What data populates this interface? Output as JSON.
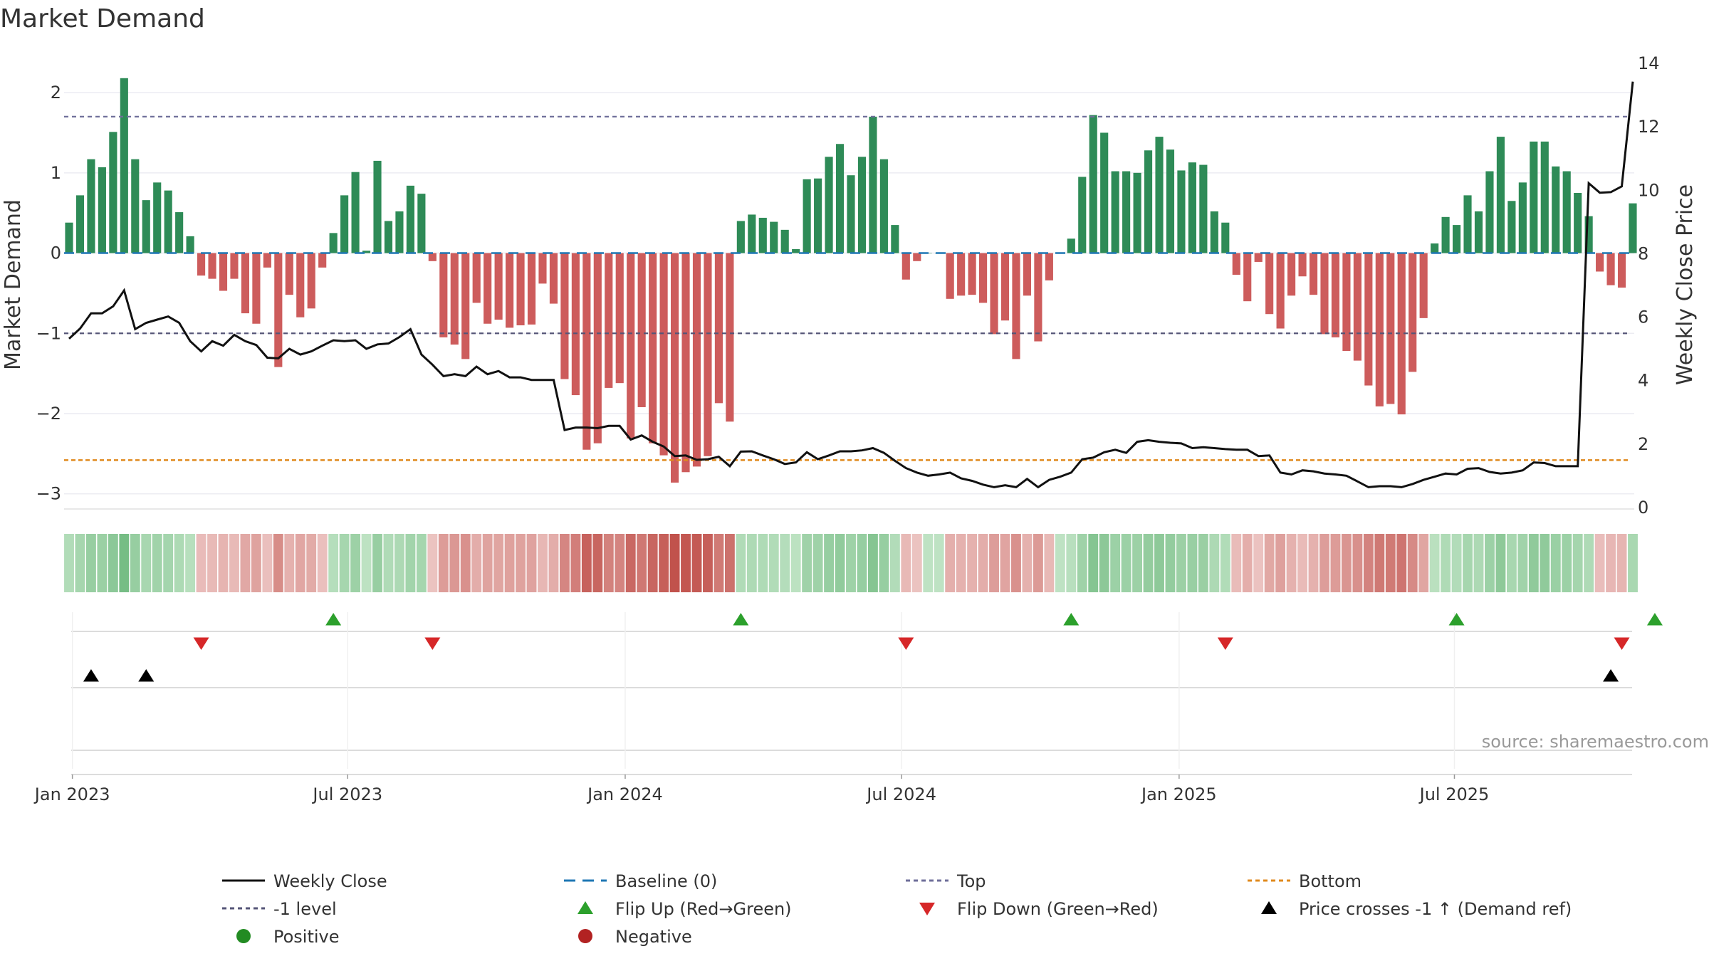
{
  "title": "Market Demand",
  "source_note": "source: sharemaestro.com",
  "colors": {
    "positive": "#2e8b57",
    "negative": "#cd5c5c",
    "close": "#111111",
    "baseline": "#1f77b4",
    "top": "#6f6f9a",
    "level": "#555577",
    "bottom": "#e08a1e",
    "flip_up": "#2ca02c",
    "flip_down": "#d62728",
    "cross": "#000000",
    "pos_dot": "#228b22",
    "neg_dot": "#b22222"
  },
  "chart_data": {
    "type": "bar",
    "title": "Market Demand",
    "ylabel": "Market Demand",
    "y2label": "Weekly Close Price",
    "ylim": [
      -3.1,
      2.4
    ],
    "y2lim": [
      0,
      14
    ],
    "yticks": [
      "2",
      "1",
      "0",
      "−1",
      "−2",
      "−3"
    ],
    "y2ticks": [
      "0",
      "2",
      "4",
      "6",
      "8",
      "10",
      "12",
      "14"
    ],
    "x_ticks": [
      "Jan 2023",
      "Jul 2023",
      "Jan 2024",
      "Jul 2024",
      "Jan 2025",
      "Jul 2025"
    ],
    "reference_lines": {
      "baseline": 0,
      "top": 1.7,
      "minus_one": -1.0,
      "bottom": -2.58
    },
    "demand": [
      0.38,
      0.72,
      1.17,
      1.07,
      1.51,
      2.18,
      1.17,
      0.66,
      0.88,
      0.78,
      0.51,
      0.21,
      -0.28,
      -0.32,
      -0.47,
      -0.32,
      -0.75,
      -0.88,
      -0.18,
      -1.42,
      -0.52,
      -0.8,
      -0.69,
      -0.18,
      0.25,
      0.72,
      1.01,
      0.03,
      1.15,
      0.4,
      0.52,
      0.84,
      0.74,
      -0.1,
      -1.05,
      -1.14,
      -1.32,
      -0.62,
      -0.88,
      -0.83,
      -0.93,
      -0.9,
      -0.89,
      -0.38,
      -0.63,
      -1.57,
      -1.77,
      -2.45,
      -2.37,
      -1.68,
      -1.62,
      -2.31,
      -1.92,
      -2.37,
      -2.52,
      -2.86,
      -2.73,
      -2.66,
      -2.53,
      -1.87,
      -2.1,
      0.4,
      0.48,
      0.44,
      0.39,
      0.29,
      0.05,
      0.92,
      0.93,
      1.2,
      1.36,
      0.97,
      1.2,
      1.7,
      1.17,
      0.35,
      -0.33,
      -0.1,
      0.0,
      0.0,
      -0.57,
      -0.53,
      -0.52,
      -0.62,
      -1.01,
      -0.84,
      -1.32,
      -0.53,
      -1.1,
      -0.34,
      0.0,
      0.18,
      0.95,
      1.72,
      1.5,
      1.02,
      1.02,
      1.0,
      1.28,
      1.45,
      1.29,
      1.03,
      1.13,
      1.1,
      0.52,
      0.38,
      -0.27,
      -0.6,
      -0.11,
      -0.76,
      -0.94,
      -0.53,
      -0.29,
      -0.52,
      -1.01,
      -1.05,
      -1.22,
      -1.34,
      -1.65,
      -1.91,
      -1.88,
      -2.01,
      -1.48,
      -0.81,
      0.12,
      0.45,
      0.35,
      0.72,
      0.52,
      1.02,
      1.45,
      0.65,
      0.88,
      1.39,
      1.39,
      1.08,
      1.02,
      0.75,
      0.46,
      -0.23,
      -0.4,
      -0.43,
      0.62
    ],
    "close": [
      5.3,
      5.62,
      6.1,
      6.1,
      6.32,
      6.82,
      5.6,
      5.8,
      5.9,
      6.0,
      5.8,
      5.22,
      4.9,
      5.22,
      5.08,
      5.42,
      5.22,
      5.1,
      4.7,
      4.68,
      4.98,
      4.8,
      4.9,
      5.08,
      5.25,
      5.22,
      5.25,
      4.98,
      5.12,
      5.15,
      5.35,
      5.6,
      4.8,
      4.48,
      4.12,
      4.18,
      4.12,
      4.42,
      4.18,
      4.28,
      4.08,
      4.08,
      4.0,
      4.0,
      4.0,
      2.42,
      2.5,
      2.5,
      2.48,
      2.55,
      2.55,
      2.12,
      2.25,
      2.05,
      1.9,
      1.6,
      1.62,
      1.48,
      1.5,
      1.58,
      1.28,
      1.74,
      1.75,
      1.62,
      1.5,
      1.35,
      1.4,
      1.72,
      1.5,
      1.62,
      1.75,
      1.75,
      1.78,
      1.85,
      1.7,
      1.45,
      1.22,
      1.08,
      0.98,
      1.02,
      1.08,
      0.9,
      0.82,
      0.7,
      0.62,
      0.68,
      0.62,
      0.88,
      0.62,
      0.85,
      0.95,
      1.08,
      1.5,
      1.55,
      1.72,
      1.8,
      1.7,
      2.05,
      2.1,
      2.05,
      2.02,
      2.0,
      1.85,
      1.88,
      1.85,
      1.82,
      1.8,
      1.8,
      1.6,
      1.62,
      1.08,
      1.02,
      1.15,
      1.12,
      1.05,
      1.02,
      0.98,
      0.8,
      0.62,
      0.65,
      0.65,
      0.62,
      0.72,
      0.85,
      0.95,
      1.05,
      1.02,
      1.2,
      1.22,
      1.1,
      1.05,
      1.08,
      1.15,
      1.4,
      1.38,
      1.28,
      1.28,
      1.28,
      10.2,
      9.9,
      9.92,
      10.1,
      13.4
    ]
  },
  "series_labels": {
    "positive": "Positive",
    "negative": "Negative"
  },
  "legend": [
    {
      "key": "close",
      "label": "Weekly Close"
    },
    {
      "key": "baseline",
      "label": "Baseline (0)"
    },
    {
      "key": "top",
      "label": "Top"
    },
    {
      "key": "bottom",
      "label": "Bottom"
    },
    {
      "key": "level",
      "label": "-1 level"
    },
    {
      "key": "flip_up",
      "label": "Flip Up (Red→Green)"
    },
    {
      "key": "flip_down",
      "label": "Flip Down (Green→Red)"
    },
    {
      "key": "cross",
      "label": "Price crosses -1 ↑ (Demand ref)"
    },
    {
      "key": "pos_dot",
      "label": "Positive"
    },
    {
      "key": "neg_dot",
      "label": "Negative"
    }
  ],
  "events": {
    "flip_up": [
      24,
      61,
      91,
      126,
      144
    ],
    "flip_down": [
      12,
      33,
      76,
      105,
      141
    ],
    "cross_up": [
      2,
      7,
      140
    ]
  }
}
